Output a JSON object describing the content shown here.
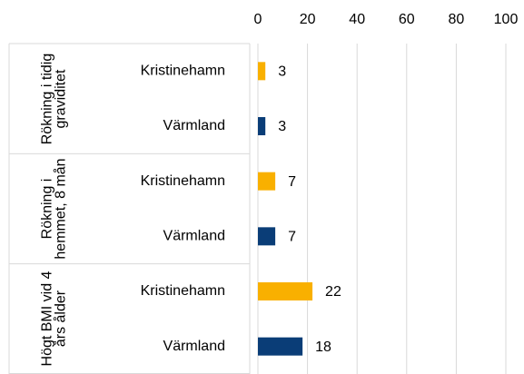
{
  "chart_data": {
    "type": "bar",
    "orientation": "horizontal",
    "categories": [
      "Rökning i tidig graviditet",
      "Rökning i hemmet, 8 mån",
      "Högt BMI vid 4 års ålder"
    ],
    "series": [
      {
        "name": "Kristinehamn",
        "color": "#f9b000",
        "values": [
          3,
          7,
          22
        ]
      },
      {
        "name": "Värmland",
        "color": "#0a3d77",
        "values": [
          3,
          7,
          18
        ]
      }
    ],
    "xlim": [
      0,
      100
    ],
    "xticks": [
      0,
      20,
      40,
      60,
      80,
      100
    ],
    "grid": true
  }
}
